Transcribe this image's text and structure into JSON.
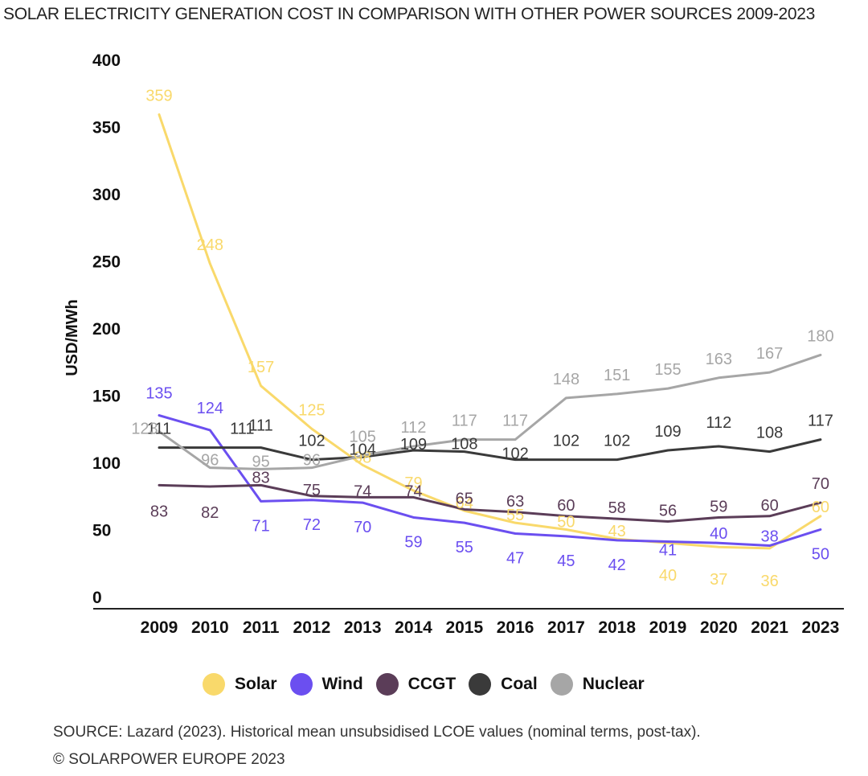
{
  "title": "SOLAR ELECTRICITY GENERATION COST IN COMPARISON WITH OTHER POWER SOURCES 2009-2023",
  "source_text": "SOURCE: Lazard (2023). Historical mean unsubsidised LCOE values (nominal terms, post-tax).",
  "copyright_text": "© SOLARPOWER EUROPE 2023",
  "chart_data": {
    "type": "line",
    "title": "SOLAR ELECTRICITY GENERATION COST IN COMPARISON WITH OTHER POWER SOURCES 2009-2023",
    "xlabel": "",
    "ylabel": "USD/MWh",
    "ylim": [
      0,
      400
    ],
    "yticks": [
      0,
      50,
      100,
      150,
      200,
      250,
      300,
      350,
      400
    ],
    "x": [
      "2009",
      "2010",
      "2011",
      "2012",
      "2013",
      "2014",
      "2015",
      "2016",
      "2017",
      "2018",
      "2019",
      "2020",
      "2021",
      "2023"
    ],
    "grid": false,
    "legend_position": "bottom",
    "series": [
      {
        "name": "Solar",
        "color": "#f9d96b",
        "values": [
          359,
          248,
          157,
          125,
          98,
          79,
          64,
          55,
          50,
          43,
          40,
          37,
          36,
          60
        ]
      },
      {
        "name": "Wind",
        "color": "#6b4ff0",
        "values": [
          135,
          124,
          71,
          72,
          70,
          59,
          55,
          47,
          45,
          42,
          41,
          40,
          38,
          50
        ]
      },
      {
        "name": "CCGT",
        "color": "#5b3d58",
        "values": [
          83,
          82,
          83,
          75,
          74,
          74,
          65,
          63,
          60,
          58,
          56,
          59,
          60,
          70
        ]
      },
      {
        "name": "Coal",
        "color": "#3a3a3a",
        "values": [
          111,
          111,
          111,
          102,
          104,
          109,
          108,
          102,
          102,
          102,
          109,
          112,
          108,
          117
        ]
      },
      {
        "name": "Nuclear",
        "color": "#a6a6a6",
        "values": [
          123,
          96,
          95,
          96,
          105,
          112,
          117,
          117,
          148,
          151,
          155,
          163,
          167,
          180
        ]
      }
    ]
  }
}
